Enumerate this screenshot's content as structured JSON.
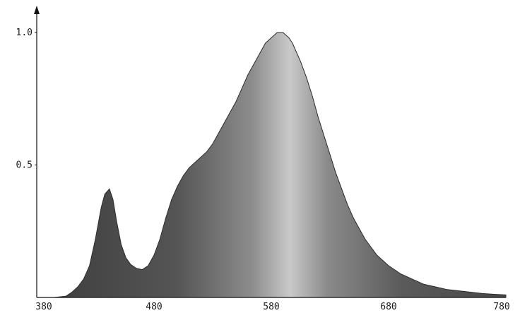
{
  "chart_data": {
    "type": "area",
    "title": "",
    "xlabel": "",
    "ylabel": "",
    "xlim": [
      380,
      780
    ],
    "ylim": [
      0,
      1.0
    ],
    "grid": false,
    "x_ticks": [
      "380",
      "480",
      "580",
      "680",
      "780"
    ],
    "y_ticks": [
      "0.5",
      "1.0"
    ],
    "colors": {
      "fill_dark": "#3f3f3f",
      "fill_light": "#c4c4c4",
      "axis": "#111111"
    },
    "series": [
      {
        "x": [
          380,
          395,
          405,
          410,
          415,
          420,
          425,
          430,
          435,
          438,
          442,
          445,
          448,
          452,
          456,
          460,
          465,
          470,
          475,
          480,
          485,
          490,
          495,
          500,
          505,
          510,
          515,
          520,
          525,
          530,
          535,
          540,
          545,
          550,
          555,
          560,
          565,
          570,
          575,
          580,
          585,
          590,
          595,
          598,
          600,
          605,
          610,
          615,
          620,
          625,
          630,
          635,
          640,
          645,
          650,
          655,
          660,
          665,
          670,
          675,
          680,
          690,
          700,
          710,
          720,
          730,
          740,
          750,
          760,
          770,
          780
        ],
        "values": [
          0,
          0,
          0.005,
          0.02,
          0.04,
          0.07,
          0.12,
          0.22,
          0.34,
          0.39,
          0.41,
          0.37,
          0.29,
          0.2,
          0.15,
          0.125,
          0.11,
          0.105,
          0.12,
          0.16,
          0.22,
          0.3,
          0.37,
          0.42,
          0.46,
          0.49,
          0.51,
          0.53,
          0.55,
          0.58,
          0.62,
          0.66,
          0.7,
          0.74,
          0.79,
          0.84,
          0.88,
          0.92,
          0.96,
          0.98,
          1.0,
          1.0,
          0.98,
          0.96,
          0.94,
          0.89,
          0.83,
          0.76,
          0.68,
          0.61,
          0.54,
          0.47,
          0.41,
          0.35,
          0.3,
          0.26,
          0.22,
          0.19,
          0.16,
          0.14,
          0.12,
          0.09,
          0.07,
          0.05,
          0.04,
          0.03,
          0.025,
          0.02,
          0.015,
          0.012,
          0.01
        ]
      }
    ]
  }
}
